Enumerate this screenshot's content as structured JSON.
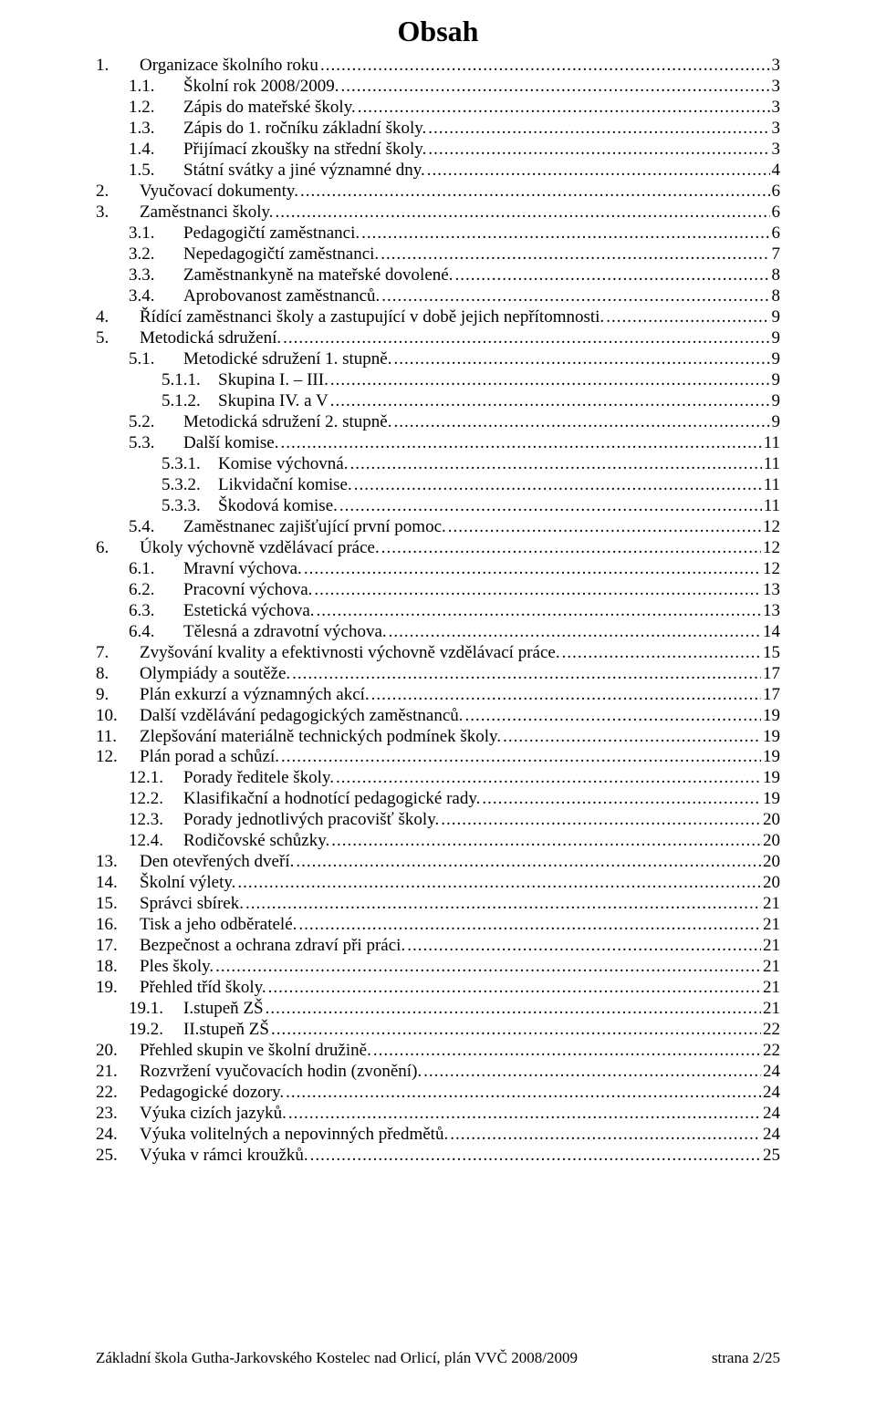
{
  "title": "Obsah",
  "footer": {
    "left": "Základní škola Gutha-Jarkovského Kostelec nad Orlicí, plán VVČ 2008/2009",
    "right": "strana 2/25"
  },
  "toc": [
    {
      "indent": 0,
      "num": "1.",
      "text": "Organizace školního roku",
      "page": "3"
    },
    {
      "indent": 1,
      "num": "1.1.",
      "text": "Školní rok 2008/2009.",
      "page": "3"
    },
    {
      "indent": 1,
      "num": "1.2.",
      "text": "Zápis do mateřské školy.",
      "page": "3"
    },
    {
      "indent": 1,
      "num": "1.3.",
      "text": "Zápis do 1. ročníku základní školy.",
      "page": "3"
    },
    {
      "indent": 1,
      "num": "1.4.",
      "text": "Přijímací zkoušky na střední školy.",
      "page": "3"
    },
    {
      "indent": 1,
      "num": "1.5.",
      "text": "Státní svátky a jiné významné dny.",
      "page": "4"
    },
    {
      "indent": 0,
      "num": "2.",
      "text": "Vyučovací dokumenty.",
      "page": "6"
    },
    {
      "indent": 0,
      "num": "3.",
      "text": "Zaměstnanci školy.",
      "page": "6"
    },
    {
      "indent": 1,
      "num": "3.1.",
      "text": "Pedagogičtí zaměstnanci.",
      "page": "6"
    },
    {
      "indent": 1,
      "num": "3.2.",
      "text": "Nepedagogičtí zaměstnanci.",
      "page": "7"
    },
    {
      "indent": 1,
      "num": "3.3.",
      "text": "Zaměstnankyně na mateřské dovolené.",
      "page": "8"
    },
    {
      "indent": 1,
      "num": "3.4.",
      "text": "Aprobovanost zaměstnanců.",
      "page": "8"
    },
    {
      "indent": 0,
      "num": "4.",
      "text": "Řídící zaměstnanci školy a zastupující v době    jejich nepřítomnosti.",
      "page": "9"
    },
    {
      "indent": 0,
      "num": "5.",
      "text": "Metodická sdružení.",
      "page": "9"
    },
    {
      "indent": 1,
      "num": "5.1.",
      "text": "Metodické sdružení 1. stupně.",
      "page": "9"
    },
    {
      "indent": 2,
      "num": "5.1.1.",
      "text": "Skupina I. – III.",
      "page": "9"
    },
    {
      "indent": 2,
      "num": "5.1.2.",
      "text": "Skupina IV. a V",
      "page": "9"
    },
    {
      "indent": 1,
      "num": "5.2.",
      "text": "Metodická sdružení 2. stupně.",
      "page": "9"
    },
    {
      "indent": 1,
      "num": "5.3.",
      "text": "Další komise.",
      "page": "11"
    },
    {
      "indent": 2,
      "num": "5.3.1.",
      "text": "Komise výchovná.",
      "page": "11"
    },
    {
      "indent": 2,
      "num": "5.3.2.",
      "text": "Likvidační komise.",
      "page": "11"
    },
    {
      "indent": 2,
      "num": "5.3.3.",
      "text": "Škodová komise.",
      "page": "11"
    },
    {
      "indent": 1,
      "num": "5.4.",
      "text": "Zaměstnanec zajišťující první pomoc.",
      "page": "12"
    },
    {
      "indent": 0,
      "num": "6.",
      "text": "Úkoly výchovně vzdělávací práce.",
      "page": "12"
    },
    {
      "indent": 1,
      "num": "6.1.",
      "text": "Mravní výchova.",
      "page": "12"
    },
    {
      "indent": 1,
      "num": "6.2.",
      "text": "Pracovní výchova.",
      "page": "13"
    },
    {
      "indent": 1,
      "num": "6.3.",
      "text": "Estetická výchova.",
      "page": "13"
    },
    {
      "indent": 1,
      "num": "6.4.",
      "text": "Tělesná a zdravotní výchova.",
      "page": "14"
    },
    {
      "indent": 0,
      "num": "7.",
      "text": "Zvyšování kvality a efektivnosti výchovně vzdělávací práce.",
      "page": "15"
    },
    {
      "indent": 0,
      "num": "8.",
      "text": "Olympiády a soutěže.",
      "page": "17"
    },
    {
      "indent": 0,
      "num": "9.",
      "text": "Plán exkurzí a významných akcí.",
      "page": "17"
    },
    {
      "indent": 0,
      "num": "10.",
      "text": "Další vzdělávání pedagogických zaměstnanců.",
      "page": "19"
    },
    {
      "indent": 0,
      "num": "11.",
      "text": "Zlepšování materiálně technických  podmínek školy.",
      "page": "19"
    },
    {
      "indent": 0,
      "num": "12.",
      "text": "Plán porad a schůzí.",
      "page": "19"
    },
    {
      "indent": 1,
      "num": "12.1.",
      "text": "Porady ředitele školy.",
      "page": "19"
    },
    {
      "indent": 1,
      "num": "12.2.",
      "text": "Klasifikační a hodnotící pedagogické rady.",
      "page": "19"
    },
    {
      "indent": 1,
      "num": "12.3.",
      "text": "Porady jednotlivých pracovišť školy.",
      "page": "20"
    },
    {
      "indent": 1,
      "num": "12.4.",
      "text": "Rodičovské schůzky.",
      "page": "20"
    },
    {
      "indent": 0,
      "num": "13.",
      "text": "Den otevřených dveří.",
      "page": "20"
    },
    {
      "indent": 0,
      "num": "14.",
      "text": "Školní výlety.",
      "page": "20"
    },
    {
      "indent": 0,
      "num": "15.",
      "text": "Správci sbírek.",
      "page": "21"
    },
    {
      "indent": 0,
      "num": "16.",
      "text": "Tisk a jeho odběratelé.",
      "page": "21"
    },
    {
      "indent": 0,
      "num": "17.",
      "text": "Bezpečnost a ochrana zdraví při práci.",
      "page": "21"
    },
    {
      "indent": 0,
      "num": "18.",
      "text": "Ples školy.",
      "page": "21"
    },
    {
      "indent": 0,
      "num": "19.",
      "text": "Přehled tříd školy.",
      "page": "21"
    },
    {
      "indent": 1,
      "num": "19.1.",
      "text": "I.stupeň ZŠ",
      "page": "21"
    },
    {
      "indent": 1,
      "num": "19.2.",
      "text": "II.stupeň ZŠ",
      "page": "22"
    },
    {
      "indent": 0,
      "num": "20.",
      "text": "Přehled skupin ve školní družině.",
      "page": "22"
    },
    {
      "indent": 0,
      "num": "21.",
      "text": "Rozvržení vyučovacích hodin (zvonění).",
      "page": "24"
    },
    {
      "indent": 0,
      "num": "22.",
      "text": "Pedagogické dozory.",
      "page": "24"
    },
    {
      "indent": 0,
      "num": "23.",
      "text": "Výuka cizích jazyků.",
      "page": "24"
    },
    {
      "indent": 0,
      "num": "24.",
      "text": "Výuka volitelných a nepovinných předmětů.",
      "page": "24"
    },
    {
      "indent": 0,
      "num": "25.",
      "text": "Výuka v rámci kroužků.",
      "page": "25"
    }
  ],
  "numWidthByIndent": {
    "0": 48,
    "1": 60,
    "2": 62
  }
}
